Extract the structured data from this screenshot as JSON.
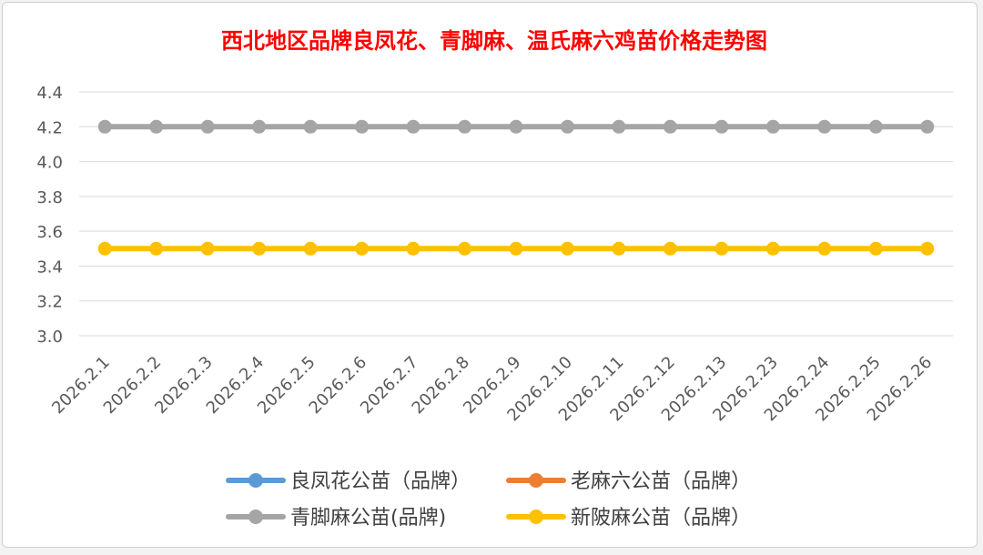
{
  "chart_data": {
    "type": "line",
    "title": "西北地区品牌良凤花、青脚麻、温氏麻六鸡苗价格走势图",
    "xlabel": "",
    "ylabel": "",
    "ylim": [
      3.0,
      4.4
    ],
    "yticks": [
      "3.0",
      "3.2",
      "3.4",
      "3.6",
      "3.8",
      "4.0",
      "4.2",
      "4.4"
    ],
    "grid": true,
    "legend_position": "bottom",
    "categories": [
      "2026.2.1",
      "2026.2.2",
      "2026.2.3",
      "2026.2.4",
      "2026.2.5",
      "2026.2.6",
      "2026.2.7",
      "2026.2.8",
      "2026.2.9",
      "2026.2.10",
      "2026.2.11",
      "2026.2.12",
      "2026.2.13",
      "2026.2.23",
      "2026.2.24",
      "2026.2.25",
      "2026.2.26"
    ],
    "series": [
      {
        "name": "良凤花公苗（品牌）",
        "color": "#5b9bd5",
        "values": [
          null,
          null,
          null,
          null,
          null,
          null,
          null,
          null,
          null,
          null,
          null,
          null,
          null,
          null,
          null,
          null,
          null
        ]
      },
      {
        "name": "老麻六公苗（品牌）",
        "color": "#ed7d31",
        "values": [
          null,
          null,
          null,
          null,
          null,
          null,
          null,
          null,
          null,
          null,
          null,
          null,
          null,
          null,
          null,
          null,
          null
        ]
      },
      {
        "name": "青脚麻公苗(品牌)",
        "color": "#a5a5a5",
        "values": [
          4.2,
          4.2,
          4.2,
          4.2,
          4.2,
          4.2,
          4.2,
          4.2,
          4.2,
          4.2,
          4.2,
          4.2,
          4.2,
          4.2,
          4.2,
          4.2,
          4.2
        ]
      },
      {
        "name": "新陂麻公苗（品牌）",
        "color": "#ffc000",
        "values": [
          3.5,
          3.5,
          3.5,
          3.5,
          3.5,
          3.5,
          3.5,
          3.5,
          3.5,
          3.5,
          3.5,
          3.5,
          3.5,
          3.5,
          3.5,
          3.5,
          3.5
        ]
      }
    ]
  }
}
